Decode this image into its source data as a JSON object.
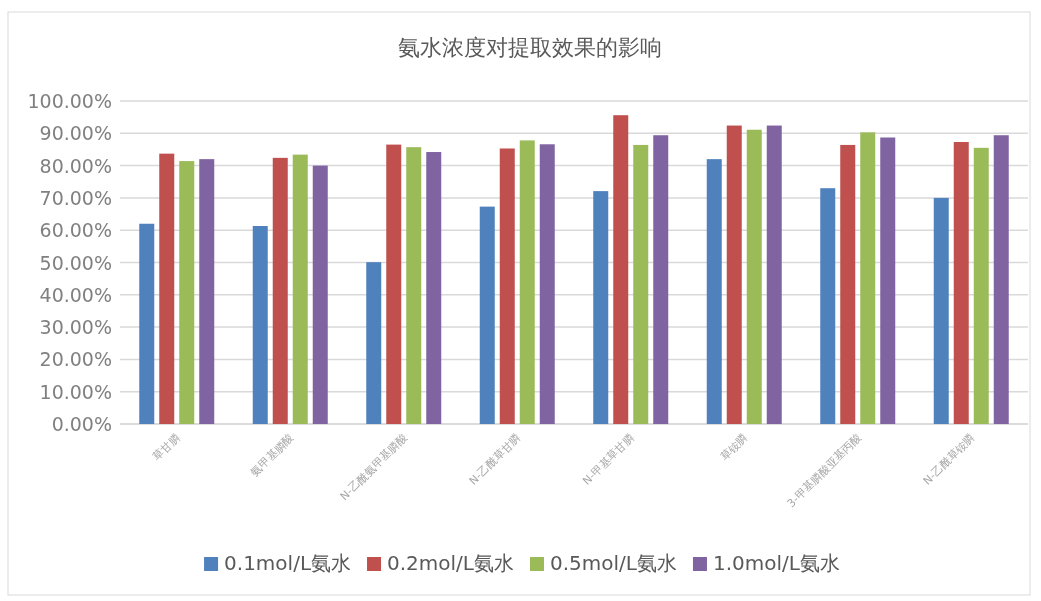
{
  "chart_data": {
    "type": "bar",
    "title": "氨水浓度对提取效果的影响",
    "categories": [
      "草甘膦",
      "氨甲基膦酸",
      "N-乙酰氨甲基膦酸",
      "N-乙酰草甘膦",
      "N-甲基草甘膦",
      "草铵膦",
      "3-甲基膦酸亚基丙酸",
      "N-乙酰草铵膦"
    ],
    "series": [
      {
        "name": "0.1mol/L氨水",
        "color": "#4f81bd",
        "values": [
          62.0,
          61.3,
          50.1,
          67.3,
          72.1,
          82.0,
          73.0,
          70.0
        ]
      },
      {
        "name": "0.2mol/L氨水",
        "color": "#c0504d",
        "values": [
          83.7,
          82.4,
          86.5,
          85.3,
          95.6,
          92.4,
          86.4,
          87.3
        ]
      },
      {
        "name": "0.5mol/L氨水",
        "color": "#9bbb59",
        "values": [
          81.4,
          83.4,
          85.7,
          87.8,
          86.4,
          91.1,
          90.3,
          85.5
        ]
      },
      {
        "name": "1.0mol/L氨水",
        "color": "#8064a2",
        "values": [
          82.0,
          80.0,
          84.2,
          86.6,
          89.4,
          92.4,
          88.7,
          89.4
        ]
      }
    ],
    "ylim": [
      0,
      100
    ],
    "yticks": [
      {
        "value": 0,
        "label": "0.00%"
      },
      {
        "value": 10,
        "label": "10.00%"
      },
      {
        "value": 20,
        "label": "20.00%"
      },
      {
        "value": 30,
        "label": "30.00%"
      },
      {
        "value": 40,
        "label": "40.00%"
      },
      {
        "value": 50,
        "label": "50.00%"
      },
      {
        "value": 60,
        "label": "60.00%"
      },
      {
        "value": 70,
        "label": "70.00%"
      },
      {
        "value": 80,
        "label": "80.00%"
      },
      {
        "value": 90,
        "label": "90.00%"
      },
      {
        "value": 100,
        "label": "100.00%"
      }
    ],
    "grid": "y",
    "legend": "bottom"
  }
}
